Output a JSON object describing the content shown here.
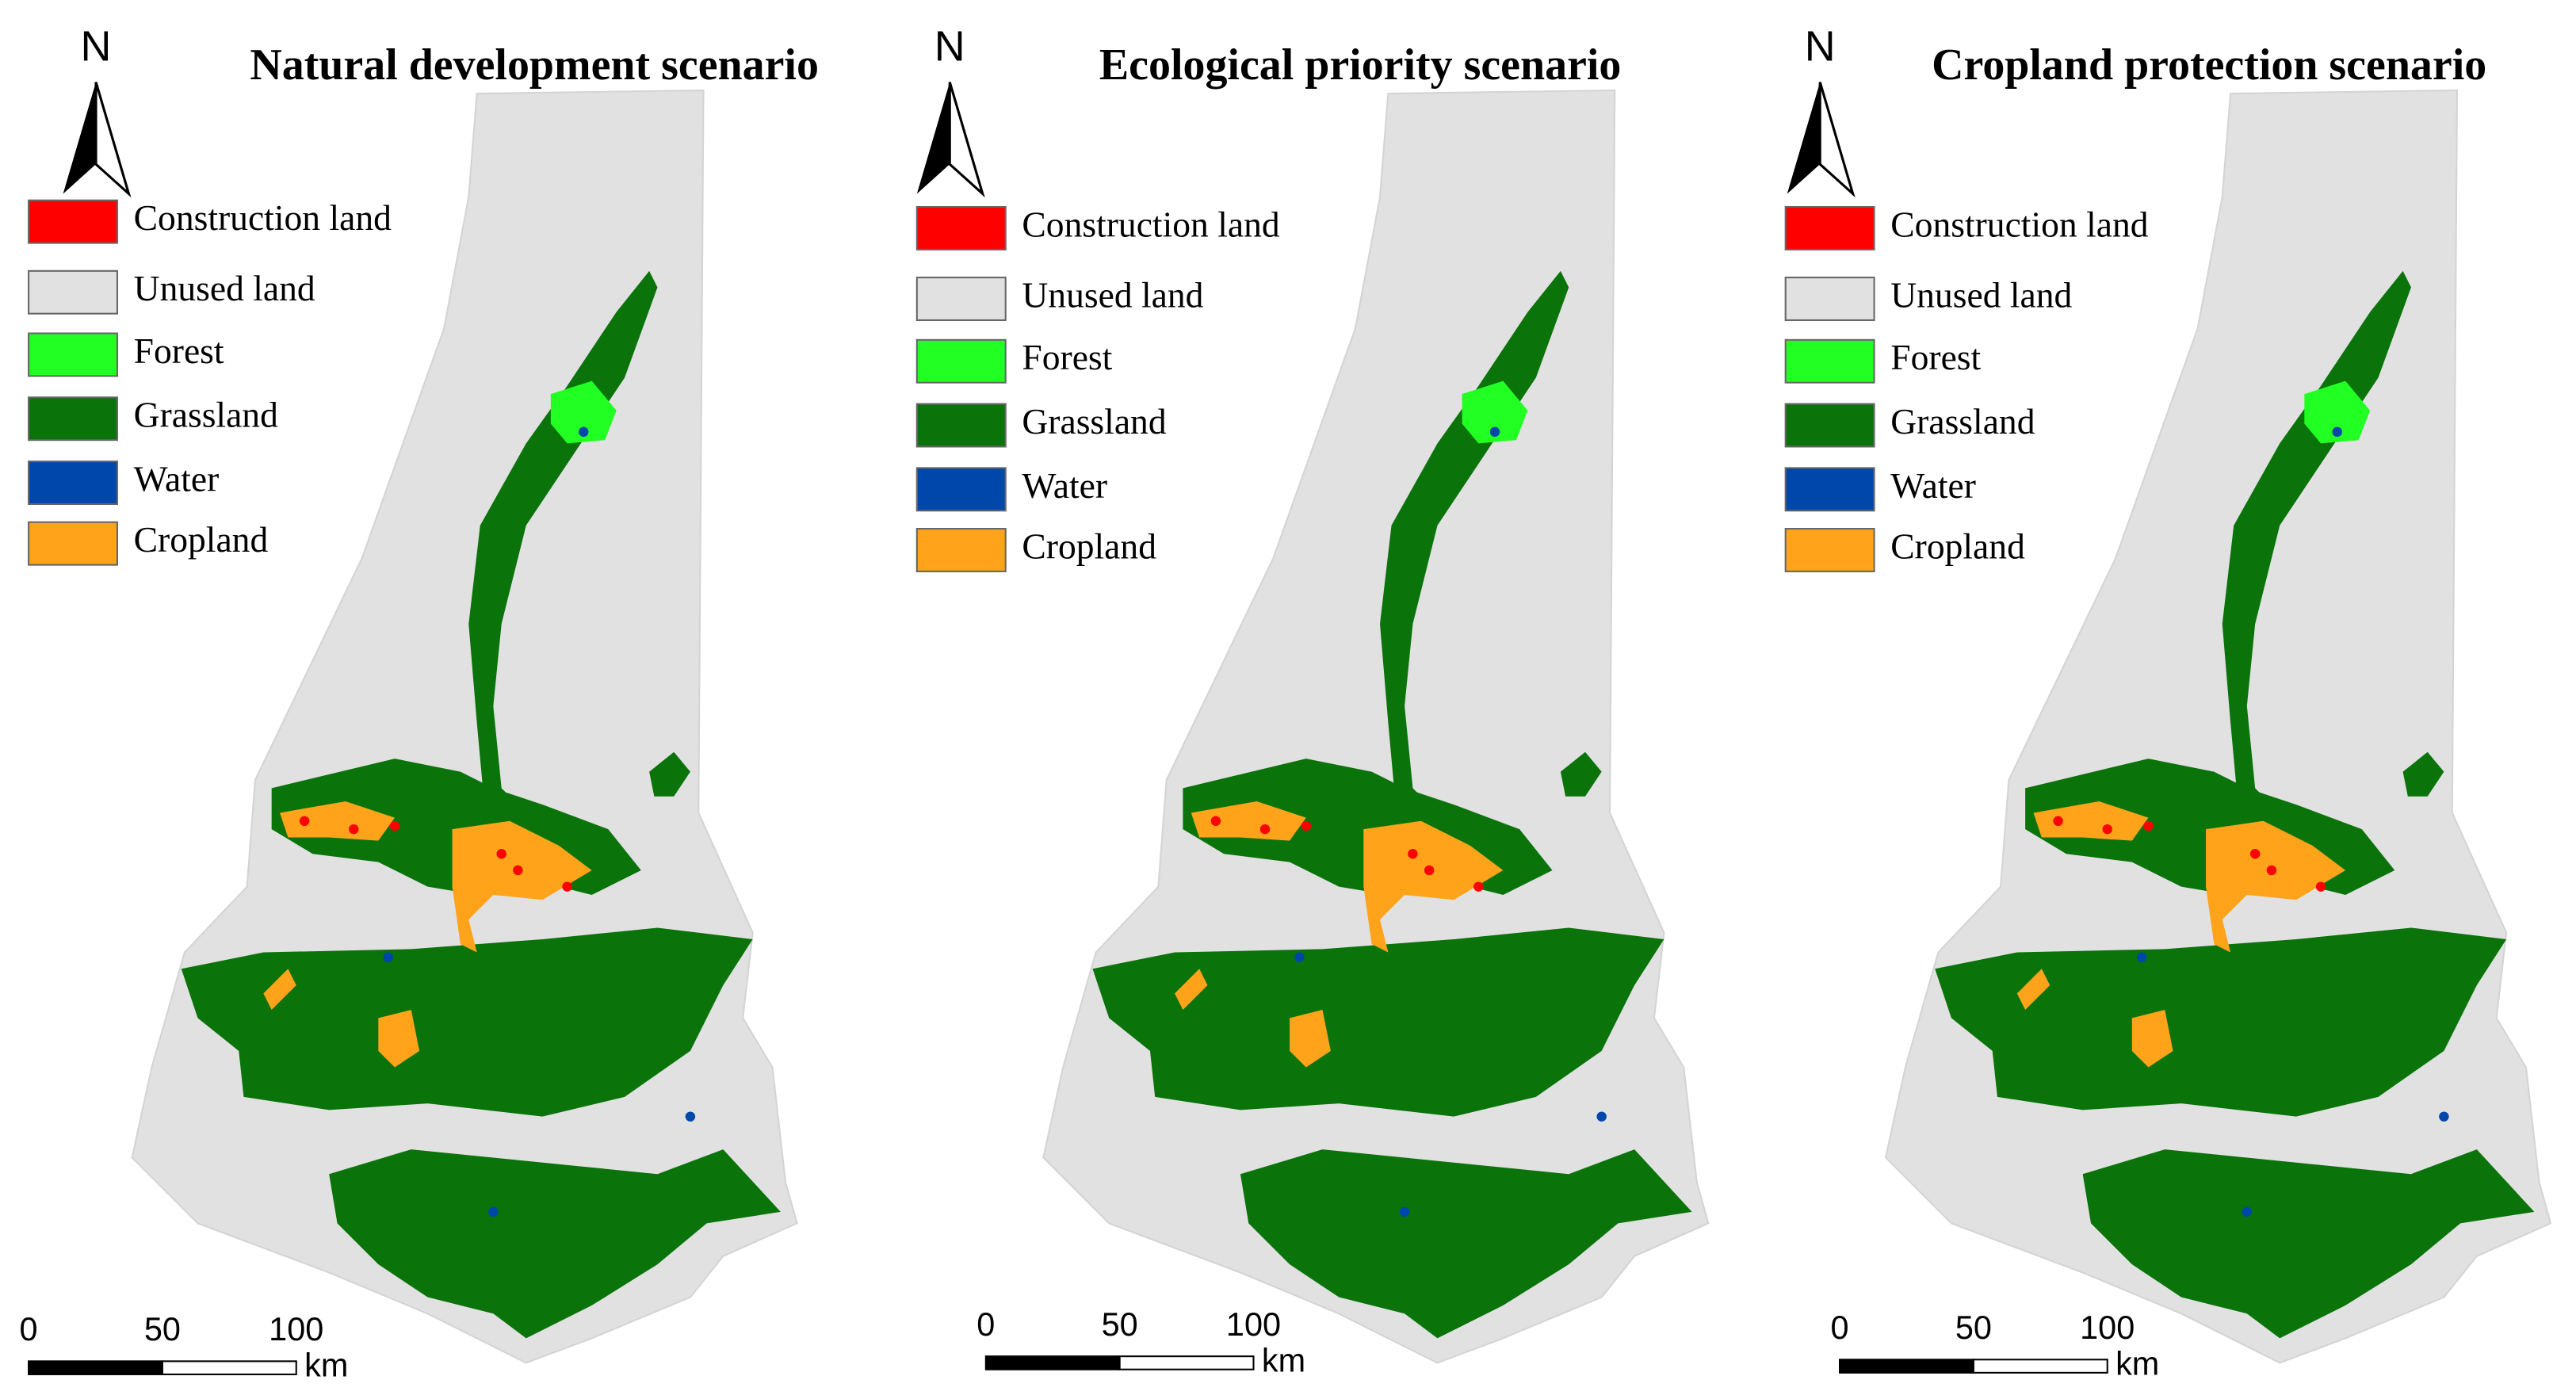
{
  "panels": [
    {
      "title": "Natural development scenario",
      "north": "N",
      "legend": [
        {
          "label": "Construction land",
          "color": "#ff0000"
        },
        {
          "label": "Unused land",
          "color": "#e1e1e1"
        },
        {
          "label": "Forest",
          "color": "#22ff22"
        },
        {
          "label": "Grassland",
          "color": "#0a730a"
        },
        {
          "label": "Water",
          "color": "#0047ab"
        },
        {
          "label": "Cropland",
          "color": "#ffa31a"
        }
      ],
      "scale_bar": {
        "ticks": [
          0,
          50,
          100
        ],
        "unit": "km"
      }
    },
    {
      "title": "Ecological priority scenario",
      "north": "N",
      "legend": [
        {
          "label": "Construction land",
          "color": "#ff0000"
        },
        {
          "label": "Unused land",
          "color": "#e1e1e1"
        },
        {
          "label": "Forest",
          "color": "#22ff22"
        },
        {
          "label": "Grassland",
          "color": "#0a730a"
        },
        {
          "label": "Water",
          "color": "#0047ab"
        },
        {
          "label": "Cropland",
          "color": "#ffa31a"
        }
      ],
      "scale_bar": {
        "ticks": [
          0,
          50,
          100
        ],
        "unit": "km"
      }
    },
    {
      "title": "Cropland protection scenario",
      "north": "N",
      "legend": [
        {
          "label": "Construction land",
          "color": "#ff0000"
        },
        {
          "label": "Unused land",
          "color": "#e1e1e1"
        },
        {
          "label": "Forest",
          "color": "#22ff22"
        },
        {
          "label": "Grassland",
          "color": "#0a730a"
        },
        {
          "label": "Water",
          "color": "#0047ab"
        },
        {
          "label": "Cropland",
          "color": "#ffa31a"
        }
      ],
      "scale_bar": {
        "ticks": [
          0,
          50,
          100
        ],
        "unit": "km"
      }
    }
  ]
}
